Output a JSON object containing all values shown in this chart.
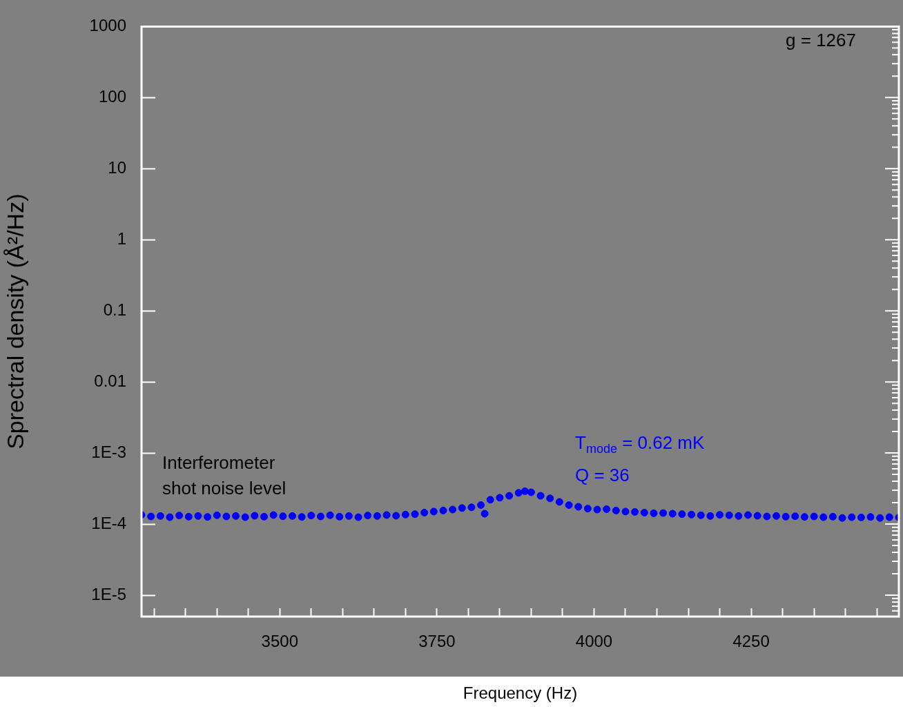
{
  "chart_data": {
    "type": "scatter",
    "xlabel": "Frequency (Hz)",
    "ylabel": "Sprectral density (Å²/Hz)",
    "annotations": [
      "g = 1267",
      "Interferometer\nshot noise level",
      "T$_{mode}$ = 0.62 mK",
      "Q = 36"
    ],
    "series": [
      {
        "color": "#0000ff",
        "x": [
          3280,
          3295,
          3310,
          3325,
          3340,
          3355,
          3370,
          3385,
          3400,
          3415,
          3430,
          3445,
          3460,
          3475,
          3490,
          3505,
          3520,
          3535,
          3550,
          3565,
          3580,
          3595,
          3610,
          3625,
          3640,
          3655,
          3670,
          3685,
          3700,
          3715,
          3730,
          3745,
          3760,
          3775,
          3790,
          3805,
          3820,
          3826,
          3835,
          3850,
          3865,
          3880,
          3890,
          3900,
          3915,
          3930,
          3945,
          3960,
          3975,
          3990,
          4005,
          4020,
          4035,
          4050,
          4065,
          4080,
          4095,
          4110,
          4125,
          4140,
          4155,
          4170,
          4185,
          4200,
          4215,
          4230,
          4245,
          4260,
          4275,
          4290,
          4305,
          4320,
          4335,
          4350,
          4365,
          4380,
          4395,
          4410,
          4425,
          4440,
          4455,
          4470,
          4485
        ],
        "values": [
          0.000135,
          0.000128,
          0.00013,
          0.000125,
          0.000132,
          0.000127,
          0.00013,
          0.000126,
          0.000133,
          0.000128,
          0.00013,
          0.000125,
          0.000131,
          0.000127,
          0.000134,
          0.000129,
          0.00013,
          0.000126,
          0.000132,
          0.000128,
          0.000133,
          0.000127,
          0.00013,
          0.000125,
          0.000132,
          0.00013,
          0.000134,
          0.000131,
          0.000136,
          0.000138,
          0.000145,
          0.00015,
          0.000155,
          0.00016,
          0.000168,
          0.000172,
          0.000185,
          0.00014,
          0.00022,
          0.000235,
          0.00025,
          0.000275,
          0.00029,
          0.00028,
          0.00025,
          0.00023,
          0.000205,
          0.000185,
          0.000175,
          0.000165,
          0.00016,
          0.000162,
          0.000155,
          0.00015,
          0.000148,
          0.000145,
          0.000142,
          0.000143,
          0.00014,
          0.000138,
          0.000136,
          0.000133,
          0.00013,
          0.000135,
          0.000133,
          0.00013,
          0.000134,
          0.000131,
          0.000128,
          0.00013,
          0.000127,
          0.000129,
          0.000126,
          0.000128,
          0.000125,
          0.000127,
          0.000122,
          0.000125,
          0.000124,
          0.000126,
          0.000122,
          0.000125,
          0.000124
        ]
      }
    ],
    "xlim": [
      3280,
      4485
    ],
    "xticks": [
      {
        "value": 3300,
        "label": null
      },
      {
        "value": 3350,
        "label": null
      },
      {
        "value": 3400,
        "label": null
      },
      {
        "value": 3450,
        "label": null
      },
      3500,
      {
        "value": 3550,
        "label": null
      },
      {
        "value": 3600,
        "label": null
      },
      {
        "value": 3650,
        "label": null
      },
      {
        "value": 3700,
        "label": null
      },
      3750,
      {
        "value": 3800,
        "label": null
      },
      {
        "value": 3850,
        "label": null
      },
      {
        "value": 3900,
        "label": null
      },
      {
        "value": 3950,
        "label": null
      },
      4000,
      {
        "value": 4050,
        "label": null
      },
      {
        "value": 4100,
        "label": null
      },
      {
        "value": 4150,
        "label": null
      },
      {
        "value": 4200,
        "label": null
      },
      4250,
      {
        "value": 4300,
        "label": null
      },
      {
        "value": 4350,
        "label": null
      },
      {
        "value": 4400,
        "label": null
      },
      {
        "value": 4450,
        "label": null
      }
    ],
    "ylim": [
      5e-06,
      1000
    ],
    "yticks": [
      {
        "value": 1e-05,
        "label": "1E-5"
      },
      {
        "value": 0.0001,
        "label": "1E-4"
      },
      {
        "value": 0.001,
        "label": "1E-3"
      },
      0.01,
      0.1,
      1,
      10,
      100,
      1000
    ],
    "log": "y",
    "grid": false,
    "legend": false,
    "marker": "circle"
  }
}
